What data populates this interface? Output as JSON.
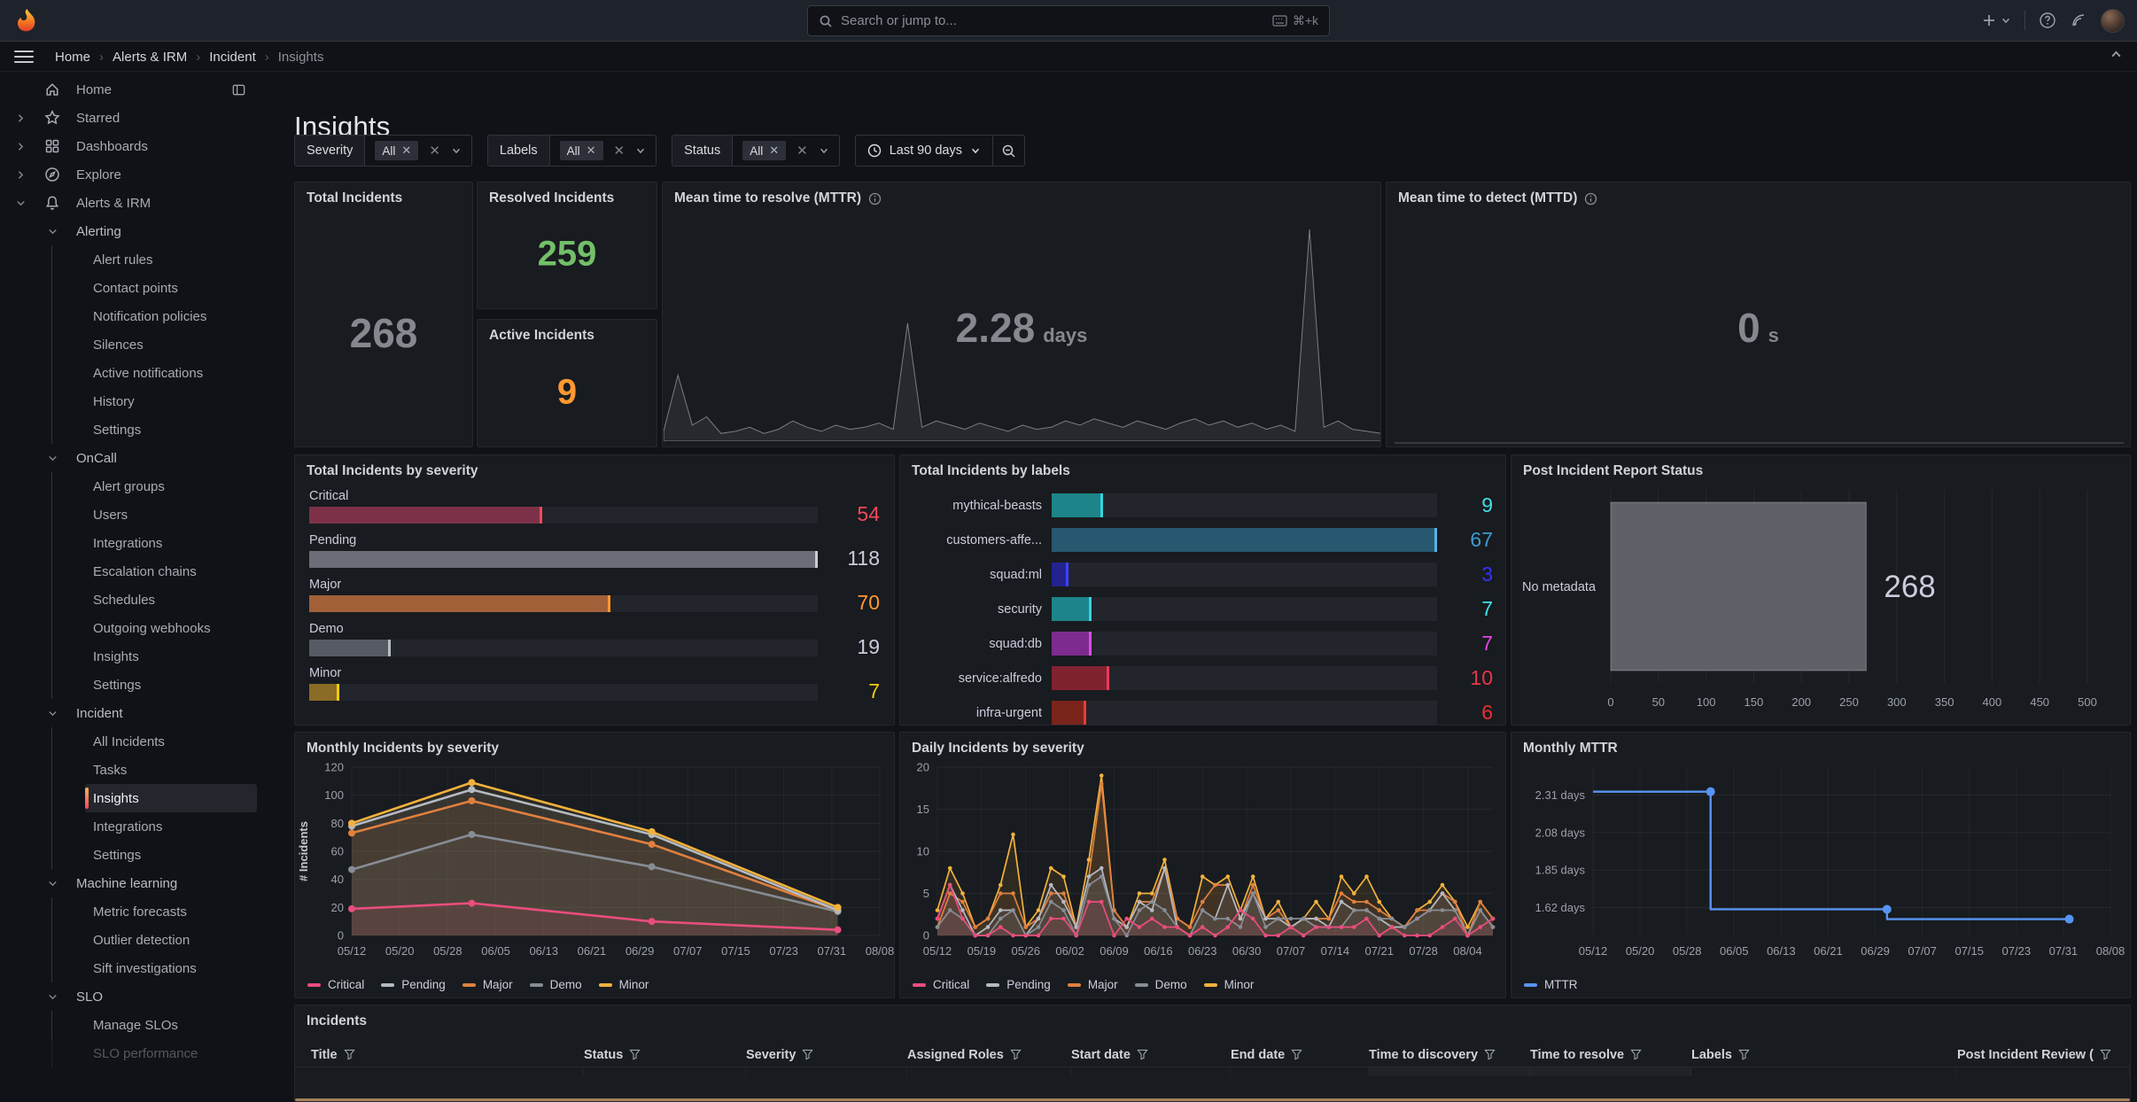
{
  "topbar": {
    "search": {
      "placeholder": "Search or jump to...",
      "shortcut": "⌘+k"
    }
  },
  "breadcrumb": {
    "items": [
      "Home",
      "Alerts & IRM",
      "Incident",
      "Insights"
    ]
  },
  "page_title": "Insights",
  "filters": [
    {
      "label": "Severity",
      "chip": "All"
    },
    {
      "label": "Labels",
      "chip": "All"
    },
    {
      "label": "Status",
      "chip": "All"
    }
  ],
  "time_picker": {
    "range_label": "Last 90 days"
  },
  "sidebar": {
    "items": [
      {
        "label": "Home",
        "level": 0,
        "icon": "home-icon",
        "trailing_icon": "dock-icon"
      },
      {
        "label": "Starred",
        "level": 0,
        "icon": "star-icon",
        "chevron": "right"
      },
      {
        "label": "Dashboards",
        "level": 0,
        "icon": "dashboards-icon",
        "chevron": "right"
      },
      {
        "label": "Explore",
        "level": 0,
        "icon": "compass-icon",
        "chevron": "right"
      },
      {
        "label": "Alerts & IRM",
        "level": 0,
        "icon": "bell-icon",
        "chevron": "down"
      },
      {
        "label": "Alerting",
        "level": 1,
        "chevron": "down"
      },
      {
        "label": "Alert rules",
        "level": 2
      },
      {
        "label": "Contact points",
        "level": 2
      },
      {
        "label": "Notification policies",
        "level": 2
      },
      {
        "label": "Silences",
        "level": 2
      },
      {
        "label": "Active notifications",
        "level": 2
      },
      {
        "label": "History",
        "level": 2
      },
      {
        "label": "Settings",
        "level": 2
      },
      {
        "label": "OnCall",
        "level": 1,
        "chevron": "down"
      },
      {
        "label": "Alert groups",
        "level": 2
      },
      {
        "label": "Users",
        "level": 2
      },
      {
        "label": "Integrations",
        "level": 2
      },
      {
        "label": "Escalation chains",
        "level": 2
      },
      {
        "label": "Schedules",
        "level": 2
      },
      {
        "label": "Outgoing webhooks",
        "level": 2
      },
      {
        "label": "Insights",
        "level": 2
      },
      {
        "label": "Settings",
        "level": 2
      },
      {
        "label": "Incident",
        "level": 1,
        "chevron": "down"
      },
      {
        "label": "All Incidents",
        "level": 2
      },
      {
        "label": "Tasks",
        "level": 2
      },
      {
        "label": "Insights",
        "level": 2,
        "active": true
      },
      {
        "label": "Integrations",
        "level": 2
      },
      {
        "label": "Settings",
        "level": 2
      },
      {
        "label": "Machine learning",
        "level": 1,
        "chevron": "down"
      },
      {
        "label": "Metric forecasts",
        "level": 2
      },
      {
        "label": "Outlier detection",
        "level": 2
      },
      {
        "label": "Sift investigations",
        "level": 2
      },
      {
        "label": "SLO",
        "level": 1,
        "chevron": "down"
      },
      {
        "label": "Manage SLOs",
        "level": 2
      },
      {
        "label": "SLO performance",
        "level": 2,
        "faded": true
      }
    ]
  },
  "stats": {
    "total_incidents": {
      "title": "Total Incidents",
      "value": "268",
      "color": "#85888f"
    },
    "resolved_incidents": {
      "title": "Resolved Incidents",
      "value": "259",
      "color": "#73bf69"
    },
    "active_incidents": {
      "title": "Active Incidents",
      "value": "9",
      "color": "#ff9830"
    },
    "mttr": {
      "title": "Mean time to resolve (MTTR)",
      "value": "2.28",
      "unit": "days",
      "color": "#85888f"
    },
    "mttd": {
      "title": "Mean time to detect (MTTD)",
      "value": "0",
      "unit": "s",
      "color": "#85888f"
    }
  },
  "incidents_table": {
    "title": "Incidents",
    "columns": [
      "Title",
      "Status",
      "Severity",
      "Assigned Roles",
      "Start date",
      "End date",
      "Time to discovery",
      "Time to resolve",
      "Labels",
      "Post Incident Review ("
    ]
  },
  "chart_data": [
    {
      "id": "severity_bars",
      "type": "bar",
      "title": "Total Incidents by severity",
      "orientation": "horizontal",
      "max": 118,
      "rows": [
        {
          "label": "Critical",
          "value": 54,
          "bar": "#7d3148",
          "cap": "#f2495c",
          "value_color": "#f2495c"
        },
        {
          "label": "Pending",
          "value": 118,
          "bar": "#6b6e76",
          "cap": "#c9ccd4",
          "value_color": "#ccccdc"
        },
        {
          "label": "Major",
          "value": 70,
          "bar": "#a26038",
          "cap": "#ff9830",
          "value_color": "#ff9830"
        },
        {
          "label": "Demo",
          "value": 19,
          "bar": "#565a62",
          "cap": "#b8bcc4",
          "value_color": "#ccccdc"
        },
        {
          "label": "Minor",
          "value": 7,
          "bar": "#8a6c26",
          "cap": "#f2cc0c",
          "value_color": "#f2cc0c"
        }
      ]
    },
    {
      "id": "labels_bars",
      "type": "bar",
      "title": "Total Incidents by labels",
      "orientation": "horizontal",
      "max": 67,
      "rows": [
        {
          "label": "mythical-beasts",
          "value": 9,
          "bar": "#1d8589",
          "cap": "#39d2da",
          "value_color": "#3fe0e8"
        },
        {
          "label": "customers-affe...",
          "value": 67,
          "bar": "#28586f",
          "cap": "#57b2e8",
          "value_color": "#3d9bd1"
        },
        {
          "label": "squad:ml",
          "value": 3,
          "bar": "#23238f",
          "cap": "#4040ff",
          "value_color": "#3333ff"
        },
        {
          "label": "security",
          "value": 7,
          "bar": "#1d8589",
          "cap": "#39d2da",
          "value_color": "#3fe0e8"
        },
        {
          "label": "squad:db",
          "value": 7,
          "bar": "#7d2b8f",
          "cap": "#d84fe0",
          "value_color": "#e743e7"
        },
        {
          "label": "service:alfredo",
          "value": 10,
          "bar": "#812231",
          "cap": "#e83b57",
          "value_color": "#ea3449"
        },
        {
          "label": "infra-urgent",
          "value": 6,
          "bar": "#79241b",
          "cap": "#e73c33",
          "value_color": "#ed3030"
        }
      ]
    },
    {
      "id": "pir_status",
      "type": "bar",
      "title": "Post Incident Report Status",
      "orientation": "horizontal",
      "categories": [
        "No metadata"
      ],
      "values": [
        268
      ],
      "value_label": "268",
      "xlim": [
        0,
        500
      ],
      "x_ticks": [
        0,
        50,
        100,
        150,
        200,
        250,
        300,
        350,
        400,
        450,
        500
      ],
      "bar_color": "#5e6167",
      "grid": true
    },
    {
      "id": "monthly_severity",
      "type": "area",
      "title": "Monthly Incidents by severity",
      "ylabel": "# Incidents",
      "ylim": [
        0,
        120
      ],
      "y_ticks": [
        0,
        20,
        40,
        60,
        80,
        100,
        120
      ],
      "total_days": 88,
      "x_ticks": [
        {
          "day": 0,
          "label": "05/12"
        },
        {
          "day": 8,
          "label": "05/20"
        },
        {
          "day": 16,
          "label": "05/28"
        },
        {
          "day": 24,
          "label": "06/05"
        },
        {
          "day": 32,
          "label": "06/13"
        },
        {
          "day": 40,
          "label": "06/21"
        },
        {
          "day": 48,
          "label": "06/29"
        },
        {
          "day": 56,
          "label": "07/07"
        },
        {
          "day": 64,
          "label": "07/15"
        },
        {
          "day": 72,
          "label": "07/23"
        },
        {
          "day": 80,
          "label": "07/31"
        },
        {
          "day": 88,
          "label": "08/08"
        }
      ],
      "x_days": [
        0,
        20,
        50,
        81
      ],
      "values_are_cumulative_stack": true,
      "series": [
        {
          "name": "Critical",
          "color": "#ea4d7d",
          "values": [
            19,
            23,
            10,
            4
          ]
        },
        {
          "name": "Demo",
          "color": "#878c95",
          "values": [
            47,
            72,
            49,
            17
          ]
        },
        {
          "name": "Major",
          "color": "#e0803f",
          "values": [
            73,
            96,
            65,
            18
          ]
        },
        {
          "name": "Pending",
          "color": "#b4bac3",
          "values": [
            78,
            104,
            72,
            18
          ]
        },
        {
          "name": "Minor",
          "color": "#f2b13d",
          "values": [
            80,
            109,
            74,
            20
          ]
        }
      ],
      "legend": [
        {
          "name": "Critical",
          "color": "#ea4d7d"
        },
        {
          "name": "Pending",
          "color": "#b4bac3"
        },
        {
          "name": "Major",
          "color": "#e0803f"
        },
        {
          "name": "Demo",
          "color": "#878c95"
        },
        {
          "name": "Minor",
          "color": "#f2b13d"
        }
      ]
    },
    {
      "id": "daily_severity",
      "type": "line",
      "title": "Daily Incidents by severity",
      "ylim": [
        0,
        20
      ],
      "y_ticks": [
        0,
        5,
        10,
        15,
        20
      ],
      "total_days": 88,
      "day_step": 2,
      "x_ticks": [
        {
          "day": 0,
          "label": "05/12"
        },
        {
          "day": 7,
          "label": "05/19"
        },
        {
          "day": 14,
          "label": "05/26"
        },
        {
          "day": 21,
          "label": "06/02"
        },
        {
          "day": 28,
          "label": "06/09"
        },
        {
          "day": 35,
          "label": "06/16"
        },
        {
          "day": 42,
          "label": "06/23"
        },
        {
          "day": 49,
          "label": "06/30"
        },
        {
          "day": 56,
          "label": "07/07"
        },
        {
          "day": 63,
          "label": "07/14"
        },
        {
          "day": 70,
          "label": "07/21"
        },
        {
          "day": 77,
          "label": "07/28"
        },
        {
          "day": 84,
          "label": "08/04"
        }
      ],
      "series": [
        {
          "name": "Minor",
          "color": "#f2b13d",
          "values": [
            3,
            8,
            5,
            1,
            2,
            6,
            12,
            1,
            3,
            8,
            7,
            1,
            9,
            19,
            3,
            1,
            5,
            5,
            9,
            2,
            1,
            7,
            6,
            7,
            3,
            7,
            2,
            4,
            1,
            2,
            4,
            2,
            7,
            5,
            7,
            4,
            2,
            1,
            3,
            4,
            6,
            4,
            1,
            4,
            2
          ]
        },
        {
          "name": "Major",
          "color": "#e0803f",
          "values": [
            1,
            5,
            4,
            1,
            2,
            5,
            5,
            1,
            2,
            5,
            5,
            1,
            7,
            18,
            3,
            1,
            4,
            4,
            8,
            2,
            1,
            4,
            6,
            6,
            2,
            6,
            2,
            3,
            1,
            2,
            2,
            2,
            5,
            4,
            4,
            3,
            2,
            1,
            3,
            3,
            5,
            4,
            0,
            4,
            2
          ]
        },
        {
          "name": "Pending",
          "color": "#b4bac3",
          "values": [
            2,
            6,
            3,
            0,
            1,
            3,
            3,
            0,
            2,
            6,
            4,
            1,
            7,
            8,
            2,
            1,
            4,
            3,
            8,
            1,
            0,
            3,
            2,
            6,
            2,
            5,
            2,
            2,
            1,
            2,
            2,
            1,
            4,
            3,
            3,
            2,
            1,
            1,
            2,
            3,
            5,
            3,
            0,
            3,
            1
          ]
        },
        {
          "name": "Demo",
          "color": "#878c95",
          "values": [
            1,
            3,
            2,
            0,
            0,
            2,
            3,
            0,
            1,
            4,
            3,
            0,
            6,
            7,
            2,
            0,
            3,
            4,
            3,
            1,
            0,
            3,
            2,
            2,
            1,
            5,
            1,
            2,
            2,
            2,
            1,
            1,
            1,
            3,
            3,
            2,
            2,
            1,
            2,
            3,
            3,
            3,
            0,
            3,
            1
          ]
        },
        {
          "name": "Critical",
          "color": "#ea4d7d",
          "values": [
            2,
            6,
            2,
            0,
            0,
            1,
            0,
            0,
            0,
            2,
            2,
            0,
            4,
            4,
            0,
            2,
            1,
            2,
            1,
            1,
            0,
            1,
            0,
            1,
            3,
            2,
            0,
            0,
            1,
            0,
            1,
            1,
            1,
            1,
            2,
            0,
            1,
            0,
            0,
            0,
            1,
            2,
            0,
            1,
            2
          ]
        }
      ],
      "legend": [
        {
          "name": "Critical",
          "color": "#ea4d7d"
        },
        {
          "name": "Pending",
          "color": "#b4bac3"
        },
        {
          "name": "Major",
          "color": "#e0803f"
        },
        {
          "name": "Demo",
          "color": "#878c95"
        },
        {
          "name": "Minor",
          "color": "#f2b13d"
        }
      ]
    },
    {
      "id": "monthly_mttr",
      "type": "line",
      "title": "Monthly MTTR",
      "color": "#5794f2",
      "ylim": [
        1.45,
        2.48
      ],
      "total_days": 88,
      "y_ticks": [
        {
          "value": 2.31,
          "label": "2.31 days"
        },
        {
          "value": 2.08,
          "label": "2.08 days"
        },
        {
          "value": 1.85,
          "label": "1.85 days"
        },
        {
          "value": 1.62,
          "label": "1.62 days"
        }
      ],
      "x_ticks": [
        {
          "day": 0,
          "label": "05/12"
        },
        {
          "day": 8,
          "label": "05/20"
        },
        {
          "day": 16,
          "label": "05/28"
        },
        {
          "day": 24,
          "label": "06/05"
        },
        {
          "day": 32,
          "label": "06/13"
        },
        {
          "day": 40,
          "label": "06/21"
        },
        {
          "day": 48,
          "label": "06/29"
        },
        {
          "day": 56,
          "label": "07/07"
        },
        {
          "day": 64,
          "label": "07/15"
        },
        {
          "day": 72,
          "label": "07/23"
        },
        {
          "day": 80,
          "label": "07/31"
        },
        {
          "day": 88,
          "label": "08/08"
        }
      ],
      "steps": [
        {
          "from_day": 0,
          "to_day": 20,
          "value": 2.33
        },
        {
          "from_day": 20,
          "to_day": 50,
          "value": 1.61
        },
        {
          "from_day": 50,
          "to_day": 81,
          "value": 1.55
        }
      ],
      "legend": [
        {
          "name": "MTTR",
          "color": "#5794f2"
        }
      ]
    },
    {
      "id": "mttr_sparkline",
      "type": "area",
      "title": "",
      "color": "#7a7d84",
      "values": [
        0.03,
        0.3,
        0.06,
        0.1,
        0.02,
        0.03,
        0.05,
        0.02,
        0.04,
        0.08,
        0.05,
        0.03,
        0.06,
        0.04,
        0.05,
        0.07,
        0.04,
        0.55,
        0.05,
        0.08,
        0.06,
        0.04,
        0.07,
        0.05,
        0.03,
        0.06,
        0.04,
        0.05,
        0.08,
        0.06,
        0.09,
        0.07,
        0.05,
        0.08,
        0.06,
        0.04,
        0.07,
        0.09,
        0.06,
        0.08,
        0.05,
        0.07,
        0.04,
        0.06,
        0.03,
        1.0,
        0.05,
        0.08,
        0.04,
        0.03,
        0.02
      ]
    }
  ]
}
